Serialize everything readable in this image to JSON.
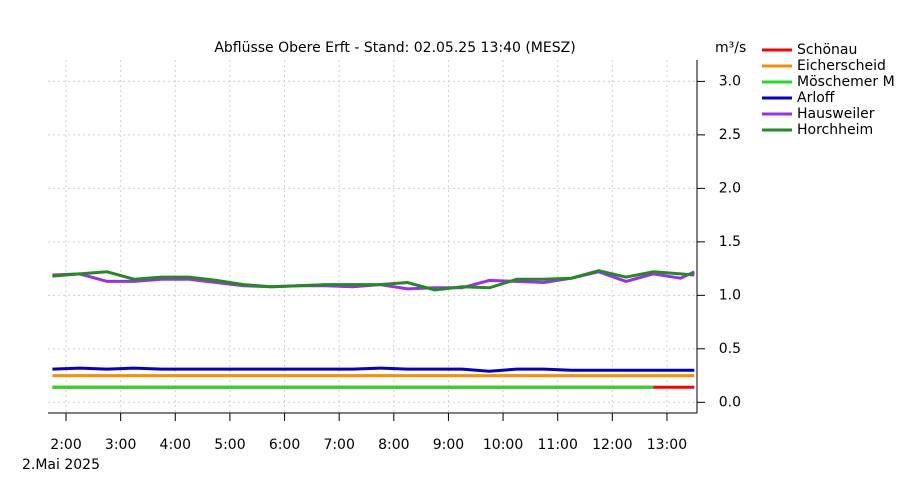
{
  "chart_data": {
    "type": "line",
    "title": "Abflüsse Obere Erft - Stand: 02.05.25 13:40 (MESZ)",
    "y_label": "m³/s",
    "date_label": "2.Mai 2025",
    "x": [
      1.75,
      2.25,
      2.75,
      3.25,
      3.75,
      4.25,
      4.75,
      5.25,
      5.75,
      6.25,
      6.75,
      7.25,
      7.75,
      8.25,
      8.75,
      9.25,
      9.75,
      10.25,
      10.75,
      11.25,
      11.75,
      12.25,
      12.75,
      13.25,
      13.5
    ],
    "xlim": [
      1.67,
      13.55
    ],
    "xticks": [
      {
        "value": 2,
        "label": "2:00"
      },
      {
        "value": 3,
        "label": "3:00"
      },
      {
        "value": 4,
        "label": "4:00"
      },
      {
        "value": 5,
        "label": "5:00"
      },
      {
        "value": 6,
        "label": "6:00"
      },
      {
        "value": 7,
        "label": "7:00"
      },
      {
        "value": 8,
        "label": "8:00"
      },
      {
        "value": 9,
        "label": "9:00"
      },
      {
        "value": 10,
        "label": "10:00"
      },
      {
        "value": 11,
        "label": "11:00"
      },
      {
        "value": 12,
        "label": "12:00"
      },
      {
        "value": 13,
        "label": "13:00"
      }
    ],
    "ylim": [
      -0.1,
      3.2
    ],
    "yticks": [
      {
        "value": 0,
        "label": "0.0"
      },
      {
        "value": 0.5,
        "label": "0.5"
      },
      {
        "value": 1,
        "label": "1.0"
      },
      {
        "value": 1.5,
        "label": "1.5"
      },
      {
        "value": 2,
        "label": "2.0"
      },
      {
        "value": 2.5,
        "label": "2.5"
      },
      {
        "value": 3,
        "label": "3.0"
      }
    ],
    "grid": true,
    "legend": "right",
    "series": [
      {
        "name": "Schönau",
        "color": "#ff0000",
        "values": [
          0.14,
          0.14,
          0.14,
          0.14,
          0.14,
          0.14,
          0.14,
          0.14,
          0.14,
          0.14,
          0.14,
          0.14,
          0.14,
          0.14,
          0.14,
          0.14,
          0.14,
          0.14,
          0.14,
          0.14,
          0.14,
          0.14,
          0.14,
          0.14,
          0.14
        ]
      },
      {
        "name": "Eicherscheid",
        "color": "#ff8c00",
        "values": [
          0.25,
          0.25,
          0.25,
          0.25,
          0.25,
          0.25,
          0.25,
          0.25,
          0.25,
          0.25,
          0.25,
          0.25,
          0.25,
          0.25,
          0.25,
          0.25,
          0.25,
          0.25,
          0.25,
          0.25,
          0.25,
          0.25,
          0.25,
          0.25,
          0.25
        ]
      },
      {
        "name": "Möschemer M",
        "color": "#22dd22",
        "values": [
          0.14,
          0.14,
          0.14,
          0.14,
          0.14,
          0.14,
          0.14,
          0.14,
          0.14,
          0.14,
          0.14,
          0.14,
          0.14,
          0.14,
          0.14,
          0.14,
          0.14,
          0.14,
          0.14,
          0.14,
          0.14,
          0.14,
          0.14,
          null,
          null
        ]
      },
      {
        "name": "Arloff",
        "color": "#0000cc",
        "values": [
          0.31,
          0.32,
          0.31,
          0.32,
          0.31,
          0.31,
          0.31,
          0.31,
          0.31,
          0.31,
          0.31,
          0.31,
          0.32,
          0.31,
          0.31,
          0.31,
          0.29,
          0.31,
          0.31,
          0.3,
          0.3,
          0.3,
          0.3,
          0.3,
          0.3
        ]
      },
      {
        "name": "Hausweiler",
        "color": "#9b30e8",
        "values": [
          1.19,
          1.2,
          1.13,
          1.13,
          1.15,
          1.15,
          1.12,
          1.09,
          1.08,
          1.09,
          1.09,
          1.08,
          1.1,
          1.06,
          1.07,
          1.07,
          1.14,
          1.13,
          1.12,
          1.16,
          1.22,
          1.13,
          1.2,
          1.16,
          1.22
        ]
      },
      {
        "name": "Horchheim",
        "color": "#228b22",
        "values": [
          1.18,
          1.2,
          1.22,
          1.15,
          1.17,
          1.17,
          1.14,
          1.1,
          1.08,
          1.09,
          1.1,
          1.1,
          1.1,
          1.12,
          1.05,
          1.08,
          1.07,
          1.15,
          1.15,
          1.16,
          1.23,
          1.17,
          1.22,
          1.2,
          1.19
        ]
      }
    ]
  }
}
